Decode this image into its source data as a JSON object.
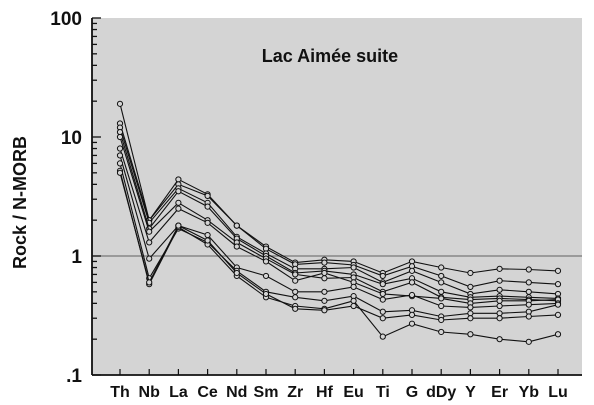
{
  "chart_data": {
    "type": "line",
    "title": "Lac Aimée suite",
    "xlabel": "",
    "ylabel": "Rock / N-MORB",
    "yscale": "log",
    "ylim": [
      0.1,
      100
    ],
    "yticks": [
      {
        "value": 100,
        "label": "100"
      },
      {
        "value": 10,
        "label": "10"
      },
      {
        "value": 1,
        "label": "1"
      },
      {
        "value": 0.1,
        "label": ".1"
      }
    ],
    "reference_line": 1,
    "grid": false,
    "background_color": "#d4d4d4",
    "line_color": "#111111",
    "marker": "open-circle",
    "categories": [
      "Th",
      "Nb",
      "La",
      "Ce",
      "Nd",
      "Sm",
      "Zr",
      "Hf",
      "Eu",
      "Ti",
      "Gd",
      "Dy",
      "Y",
      "Er",
      "Yb",
      "Lu"
    ],
    "category_labels": [
      "Th",
      "Nb",
      "La",
      "Ce",
      "Nd",
      "Sm",
      "Zr",
      "Hf",
      "Eu",
      "Ti",
      "G",
      "dDy",
      "Y",
      "Er",
      "Yb",
      "Lu"
    ],
    "series": [
      {
        "values": [
          19,
          2.0,
          4.4,
          3.3,
          1.8,
          1.2,
          0.88,
          0.93,
          0.9,
          0.72,
          0.9,
          0.8,
          0.72,
          0.78,
          0.77,
          0.75
        ]
      },
      {
        "values": [
          13,
          2.0,
          4.0,
          3.2,
          1.8,
          1.15,
          0.85,
          0.88,
          0.84,
          0.68,
          0.82,
          0.68,
          0.55,
          0.62,
          0.6,
          0.58
        ]
      },
      {
        "values": [
          12,
          1.9,
          3.7,
          2.8,
          1.45,
          1.05,
          0.78,
          0.78,
          0.8,
          0.6,
          0.75,
          0.6,
          0.48,
          0.52,
          0.5,
          0.48
        ]
      },
      {
        "values": [
          11,
          1.7,
          3.5,
          2.6,
          1.4,
          1.0,
          0.72,
          0.75,
          0.7,
          0.58,
          0.65,
          0.5,
          0.45,
          0.46,
          0.45,
          0.44
        ]
      },
      {
        "values": [
          10,
          1.6,
          2.8,
          2.0,
          1.3,
          0.95,
          0.7,
          0.65,
          0.66,
          0.5,
          0.6,
          0.45,
          0.43,
          0.44,
          0.43,
          0.42
        ]
      },
      {
        "values": [
          8,
          1.3,
          2.5,
          1.9,
          1.2,
          0.9,
          0.62,
          0.72,
          0.6,
          0.48,
          0.46,
          0.44,
          0.4,
          0.42,
          0.42,
          0.43
        ]
      },
      {
        "values": [
          7,
          0.95,
          1.8,
          1.5,
          0.8,
          0.68,
          0.5,
          0.5,
          0.55,
          0.43,
          0.47,
          0.38,
          0.37,
          0.38,
          0.39,
          0.4
        ]
      },
      {
        "values": [
          6,
          0.65,
          1.7,
          1.3,
          0.75,
          0.5,
          0.45,
          0.42,
          0.46,
          0.34,
          0.35,
          0.31,
          0.33,
          0.33,
          0.34,
          0.39
        ]
      },
      {
        "values": [
          5.2,
          0.58,
          1.75,
          1.25,
          0.68,
          0.45,
          0.38,
          0.36,
          0.42,
          0.21,
          0.27,
          0.23,
          0.22,
          0.2,
          0.19,
          0.22
        ]
      },
      {
        "values": [
          5.0,
          0.6,
          1.8,
          1.35,
          0.72,
          0.48,
          0.36,
          0.35,
          0.38,
          0.3,
          0.32,
          0.29,
          0.3,
          0.3,
          0.31,
          0.32
        ]
      }
    ]
  }
}
